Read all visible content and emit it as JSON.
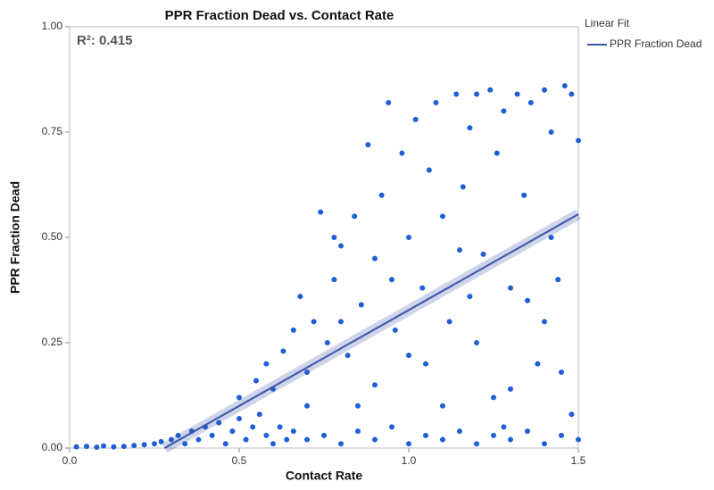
{
  "chart_data": {
    "type": "scatter",
    "title": "PPR Fraction Dead vs. Contact Rate",
    "x_label": "Contact Rate",
    "y_label": "PPR Fraction Dead",
    "annotation": "R²: 0.415",
    "legend_title": "Linear Fit",
    "series": [
      {
        "name": "PPR Fraction Dead",
        "color": "#1f5fd6",
        "x": [
          0.02,
          0.05,
          0.08,
          0.1,
          0.13,
          0.16,
          0.19,
          0.22,
          0.25,
          0.27,
          0.3,
          0.32,
          0.34,
          0.36,
          0.38,
          0.4,
          0.42,
          0.44,
          0.46,
          0.48,
          0.5,
          0.52,
          0.54,
          0.56,
          0.58,
          0.6,
          0.62,
          0.64,
          0.66,
          0.7,
          0.75,
          0.8,
          0.85,
          0.9,
          0.95,
          1.0,
          1.05,
          1.1,
          1.15,
          1.2,
          1.25,
          1.3,
          1.35,
          1.4,
          1.45,
          1.5,
          0.5,
          0.55,
          0.58,
          0.6,
          0.63,
          0.66,
          0.68,
          0.7,
          0.72,
          0.74,
          0.76,
          0.78,
          0.8,
          0.82,
          0.84,
          0.86,
          0.88,
          0.9,
          0.92,
          0.94,
          0.96,
          0.98,
          1.0,
          1.02,
          1.04,
          1.06,
          1.08,
          1.1,
          1.12,
          1.14,
          1.16,
          1.18,
          1.2,
          1.22,
          1.24,
          1.26,
          1.28,
          1.3,
          1.32,
          1.34,
          1.36,
          1.38,
          1.4,
          1.42,
          1.44,
          1.46,
          1.48,
          1.5,
          0.9,
          1.0,
          1.1,
          1.2,
          1.3,
          1.4,
          1.45,
          0.85,
          0.95,
          1.15,
          1.25,
          1.35,
          0.78,
          1.05,
          1.18,
          1.42,
          1.48,
          0.7,
          0.8,
          1.28
        ],
        "y": [
          0.003,
          0.004,
          0.002,
          0.005,
          0.003,
          0.004,
          0.006,
          0.008,
          0.01,
          0.015,
          0.02,
          0.03,
          0.01,
          0.04,
          0.02,
          0.05,
          0.03,
          0.06,
          0.01,
          0.04,
          0.07,
          0.02,
          0.05,
          0.08,
          0.03,
          0.01,
          0.05,
          0.02,
          0.04,
          0.02,
          0.03,
          0.01,
          0.04,
          0.02,
          0.05,
          0.01,
          0.03,
          0.02,
          0.04,
          0.01,
          0.03,
          0.02,
          0.04,
          0.01,
          0.03,
          0.02,
          0.12,
          0.16,
          0.2,
          0.14,
          0.23,
          0.28,
          0.36,
          0.18,
          0.3,
          0.56,
          0.25,
          0.4,
          0.48,
          0.22,
          0.55,
          0.34,
          0.72,
          0.45,
          0.6,
          0.82,
          0.28,
          0.7,
          0.5,
          0.78,
          0.38,
          0.66,
          0.82,
          0.55,
          0.3,
          0.84,
          0.62,
          0.76,
          0.84,
          0.46,
          0.85,
          0.7,
          0.8,
          0.38,
          0.84,
          0.6,
          0.82,
          0.2,
          0.85,
          0.75,
          0.4,
          0.86,
          0.84,
          0.73,
          0.15,
          0.22,
          0.1,
          0.25,
          0.14,
          0.3,
          0.18,
          0.1,
          0.4,
          0.47,
          0.12,
          0.35,
          0.5,
          0.2,
          0.36,
          0.5,
          0.08,
          0.1,
          0.3,
          0.05
        ]
      }
    ],
    "fit": {
      "x": [
        0.28,
        1.5
      ],
      "y": [
        0,
        0.555
      ],
      "color": "#3a55a8"
    },
    "xlim": [
      0,
      1.5
    ],
    "ylim": [
      0,
      1
    ],
    "xticks": [
      {
        "value": 0,
        "label": "0.0"
      },
      0.5,
      {
        "value": 1,
        "label": "1.0"
      },
      1.5
    ],
    "yticks": [
      {
        "value": 0,
        "label": "0.00"
      },
      {
        "value": 0.25,
        "label": "0.25"
      },
      {
        "value": 0.5,
        "label": "0.50"
      },
      {
        "value": 0.75,
        "label": "0.75"
      },
      {
        "value": 1,
        "label": "1.00"
      }
    ]
  }
}
